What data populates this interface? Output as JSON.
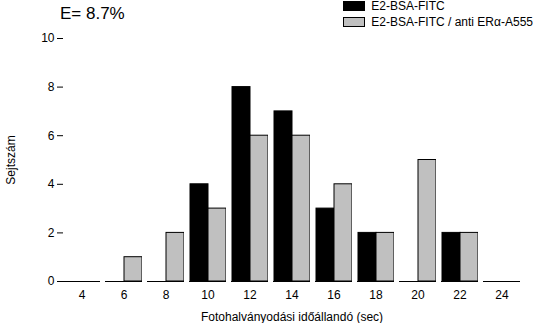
{
  "chart_data": {
    "type": "bar",
    "annotation": "E= 8.7%",
    "x_label": "Fotohalványodási időállandó (sec)",
    "y_label": "Sejtszám",
    "categories": [
      4,
      6,
      8,
      10,
      12,
      14,
      16,
      18,
      20,
      22,
      24
    ],
    "series": [
      {
        "name": "E2-BSA-FITC",
        "color": "#000000",
        "values": [
          0,
          0,
          0,
          4,
          8,
          7,
          3,
          2,
          0,
          2,
          0
        ]
      },
      {
        "name": "E2-BSA-FITC / anti ERα-A555",
        "color": "#c0c0c0",
        "values": [
          0,
          1,
          2,
          3,
          6,
          6,
          4,
          2,
          5,
          2,
          0
        ]
      }
    ],
    "ylim": [
      0,
      10
    ],
    "yticks": [
      0,
      2,
      4,
      6,
      8,
      10
    ],
    "legend": "top-right"
  }
}
